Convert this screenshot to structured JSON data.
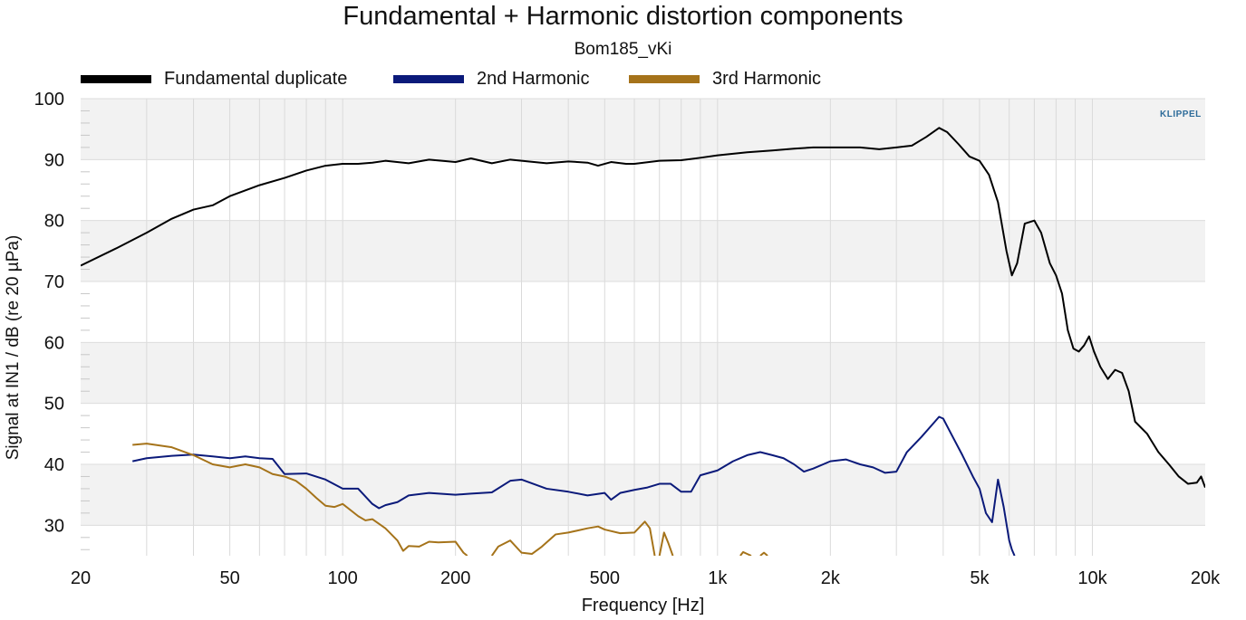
{
  "chart_data": {
    "type": "line",
    "title": "Fundamental + Harmonic distortion components",
    "subtitle": "Bom185_vKi",
    "xlabel": "Frequency [Hz]",
    "ylabel": "Signal at IN1 / dB (re 20 µPa)",
    "x_scale": "log",
    "xlim": [
      20,
      20000
    ],
    "ylim": [
      25,
      100
    ],
    "grid": true,
    "legend_position": "top",
    "x_ticks": [
      {
        "value": 20,
        "label": "20"
      },
      {
        "value": 50,
        "label": "50"
      },
      {
        "value": 100,
        "label": "100"
      },
      {
        "value": 200,
        "label": "200"
      },
      {
        "value": 500,
        "label": "500"
      },
      {
        "value": 1000,
        "label": "1k"
      },
      {
        "value": 2000,
        "label": "2k"
      },
      {
        "value": 5000,
        "label": "5k"
      },
      {
        "value": 10000,
        "label": "10k"
      },
      {
        "value": 20000,
        "label": "20k"
      }
    ],
    "y_ticks": [
      30,
      40,
      50,
      60,
      70,
      80,
      90,
      100
    ],
    "series": [
      {
        "name": "Fundamental duplicate",
        "color": "#000000",
        "points": [
          [
            20,
            72.6
          ],
          [
            25,
            75.5
          ],
          [
            30,
            78
          ],
          [
            35,
            80.3
          ],
          [
            40,
            81.8
          ],
          [
            45,
            82.5
          ],
          [
            50,
            84
          ],
          [
            60,
            85.8
          ],
          [
            70,
            87
          ],
          [
            80,
            88.2
          ],
          [
            90,
            89
          ],
          [
            100,
            89.3
          ],
          [
            110,
            89.3
          ],
          [
            120,
            89.5
          ],
          [
            130,
            89.8
          ],
          [
            150,
            89.4
          ],
          [
            170,
            90
          ],
          [
            200,
            89.6
          ],
          [
            220,
            90.2
          ],
          [
            250,
            89.4
          ],
          [
            280,
            90
          ],
          [
            300,
            89.8
          ],
          [
            350,
            89.4
          ],
          [
            400,
            89.7
          ],
          [
            450,
            89.5
          ],
          [
            480,
            89.0
          ],
          [
            520,
            89.6
          ],
          [
            570,
            89.3
          ],
          [
            600,
            89.3
          ],
          [
            700,
            89.8
          ],
          [
            800,
            89.9
          ],
          [
            900,
            90.3
          ],
          [
            1000,
            90.7
          ],
          [
            1200,
            91.2
          ],
          [
            1400,
            91.5
          ],
          [
            1600,
            91.8
          ],
          [
            1800,
            92.0
          ],
          [
            2000,
            92.0
          ],
          [
            2400,
            92.0
          ],
          [
            2700,
            91.7
          ],
          [
            3000,
            92.0
          ],
          [
            3300,
            92.3
          ],
          [
            3600,
            93.7
          ],
          [
            3900,
            95.2
          ],
          [
            4100,
            94.5
          ],
          [
            4400,
            92.5
          ],
          [
            4700,
            90.5
          ],
          [
            5000,
            89.8
          ],
          [
            5300,
            87.5
          ],
          [
            5600,
            83
          ],
          [
            5900,
            75
          ],
          [
            6100,
            71
          ],
          [
            6300,
            73
          ],
          [
            6600,
            79.5
          ],
          [
            7000,
            80
          ],
          [
            7300,
            78
          ],
          [
            7700,
            73
          ],
          [
            8000,
            71
          ],
          [
            8300,
            68
          ],
          [
            8600,
            62
          ],
          [
            8900,
            59
          ],
          [
            9200,
            58.5
          ],
          [
            9500,
            59.5
          ],
          [
            9800,
            61
          ],
          [
            10100,
            58.5
          ],
          [
            10500,
            56
          ],
          [
            11000,
            54
          ],
          [
            11500,
            55.5
          ],
          [
            12000,
            55
          ],
          [
            12500,
            52
          ],
          [
            13000,
            47
          ],
          [
            14000,
            45
          ],
          [
            15000,
            42
          ],
          [
            16000,
            40
          ],
          [
            17000,
            38
          ],
          [
            18000,
            36.8
          ],
          [
            19000,
            37
          ],
          [
            19500,
            38
          ],
          [
            20000,
            36.2
          ]
        ]
      },
      {
        "name": "2nd Harmonic",
        "color": "#0b1a7a",
        "points": [
          [
            27.5,
            40.5
          ],
          [
            30,
            41
          ],
          [
            35,
            41.4
          ],
          [
            40,
            41.6
          ],
          [
            45,
            41.3
          ],
          [
            50,
            41
          ],
          [
            55,
            41.3
          ],
          [
            60,
            41
          ],
          [
            65,
            40.9
          ],
          [
            70,
            38.4
          ],
          [
            80,
            38.5
          ],
          [
            90,
            37.5
          ],
          [
            100,
            36
          ],
          [
            110,
            36
          ],
          [
            120,
            33.5
          ],
          [
            125,
            32.8
          ],
          [
            130,
            33.3
          ],
          [
            140,
            33.8
          ],
          [
            150,
            34.9
          ],
          [
            170,
            35.3
          ],
          [
            200,
            35
          ],
          [
            220,
            35.2
          ],
          [
            250,
            35.4
          ],
          [
            280,
            37.3
          ],
          [
            300,
            37.5
          ],
          [
            350,
            36
          ],
          [
            400,
            35.5
          ],
          [
            450,
            34.9
          ],
          [
            500,
            35.3
          ],
          [
            520,
            34.2
          ],
          [
            550,
            35.3
          ],
          [
            600,
            35.8
          ],
          [
            650,
            36.2
          ],
          [
            700,
            36.8
          ],
          [
            750,
            36.8
          ],
          [
            800,
            35.5
          ],
          [
            850,
            35.5
          ],
          [
            900,
            38.2
          ],
          [
            1000,
            39
          ],
          [
            1100,
            40.5
          ],
          [
            1200,
            41.5
          ],
          [
            1300,
            42
          ],
          [
            1400,
            41.5
          ],
          [
            1500,
            41
          ],
          [
            1600,
            40
          ],
          [
            1700,
            38.8
          ],
          [
            1800,
            39.3
          ],
          [
            2000,
            40.5
          ],
          [
            2200,
            40.8
          ],
          [
            2400,
            40
          ],
          [
            2600,
            39.5
          ],
          [
            2800,
            38.6
          ],
          [
            3000,
            38.8
          ],
          [
            3200,
            42
          ],
          [
            3500,
            44.5
          ],
          [
            3800,
            47
          ],
          [
            3900,
            47.8
          ],
          [
            4000,
            47.5
          ],
          [
            4200,
            45
          ],
          [
            4500,
            41.5
          ],
          [
            4800,
            38
          ],
          [
            5000,
            36
          ],
          [
            5200,
            32
          ],
          [
            5400,
            30.5
          ],
          [
            5600,
            37.5
          ],
          [
            5800,
            33
          ],
          [
            6000,
            27.5
          ],
          [
            6100,
            26
          ],
          [
            6200,
            25
          ]
        ]
      },
      {
        "name": "3rd Harmonic",
        "color": "#a5731a",
        "points": [
          [
            27.5,
            43.2
          ],
          [
            30,
            43.4
          ],
          [
            35,
            42.8
          ],
          [
            40,
            41.5
          ],
          [
            45,
            40
          ],
          [
            50,
            39.5
          ],
          [
            55,
            40
          ],
          [
            60,
            39.5
          ],
          [
            65,
            38.4
          ],
          [
            70,
            38
          ],
          [
            75,
            37.3
          ],
          [
            80,
            36
          ],
          [
            85,
            34.5
          ],
          [
            90,
            33.2
          ],
          [
            95,
            33
          ],
          [
            100,
            33.5
          ],
          [
            110,
            31.5
          ],
          [
            115,
            30.8
          ],
          [
            120,
            31
          ],
          [
            130,
            29.5
          ],
          [
            140,
            27.5
          ],
          [
            145,
            25.8
          ],
          [
            150,
            26.6
          ],
          [
            160,
            26.5
          ],
          [
            170,
            27.3
          ],
          [
            180,
            27.2
          ],
          [
            200,
            27.3
          ],
          [
            210,
            25.5
          ],
          [
            215,
            25
          ]
        ]
      },
      {
        "name": "3rd Harmonic",
        "color": "#a5731a",
        "points": [
          [
            250,
            25
          ],
          [
            260,
            26.5
          ],
          [
            280,
            27.5
          ],
          [
            300,
            25.5
          ],
          [
            320,
            25.3
          ],
          [
            340,
            26.5
          ],
          [
            370,
            28.5
          ],
          [
            400,
            28.8
          ],
          [
            450,
            29.5
          ],
          [
            480,
            29.8
          ],
          [
            500,
            29.3
          ],
          [
            550,
            28.7
          ],
          [
            600,
            28.8
          ],
          [
            640,
            30.6
          ],
          [
            660,
            29.5
          ],
          [
            680,
            25
          ]
        ]
      },
      {
        "name": "3rd Harmonic",
        "color": "#a5731a",
        "points": [
          [
            700,
            25
          ],
          [
            720,
            28.8
          ],
          [
            740,
            27
          ],
          [
            760,
            25
          ]
        ]
      },
      {
        "name": "3rd Harmonic",
        "color": "#a5731a",
        "points": [
          [
            1150,
            25
          ],
          [
            1170,
            25.6
          ],
          [
            1200,
            25.3
          ],
          [
            1230,
            25
          ]
        ]
      },
      {
        "name": "3rd Harmonic",
        "color": "#a5731a",
        "points": [
          [
            1300,
            25
          ],
          [
            1330,
            25.5
          ],
          [
            1360,
            25
          ]
        ]
      }
    ]
  },
  "legend": [
    {
      "label": "Fundamental duplicate",
      "color": "#000000"
    },
    {
      "label": "2nd Harmonic",
      "color": "#0b1a7a"
    },
    {
      "label": "3rd Harmonic",
      "color": "#a5731a"
    }
  ],
  "watermark": "KLIPPEL"
}
